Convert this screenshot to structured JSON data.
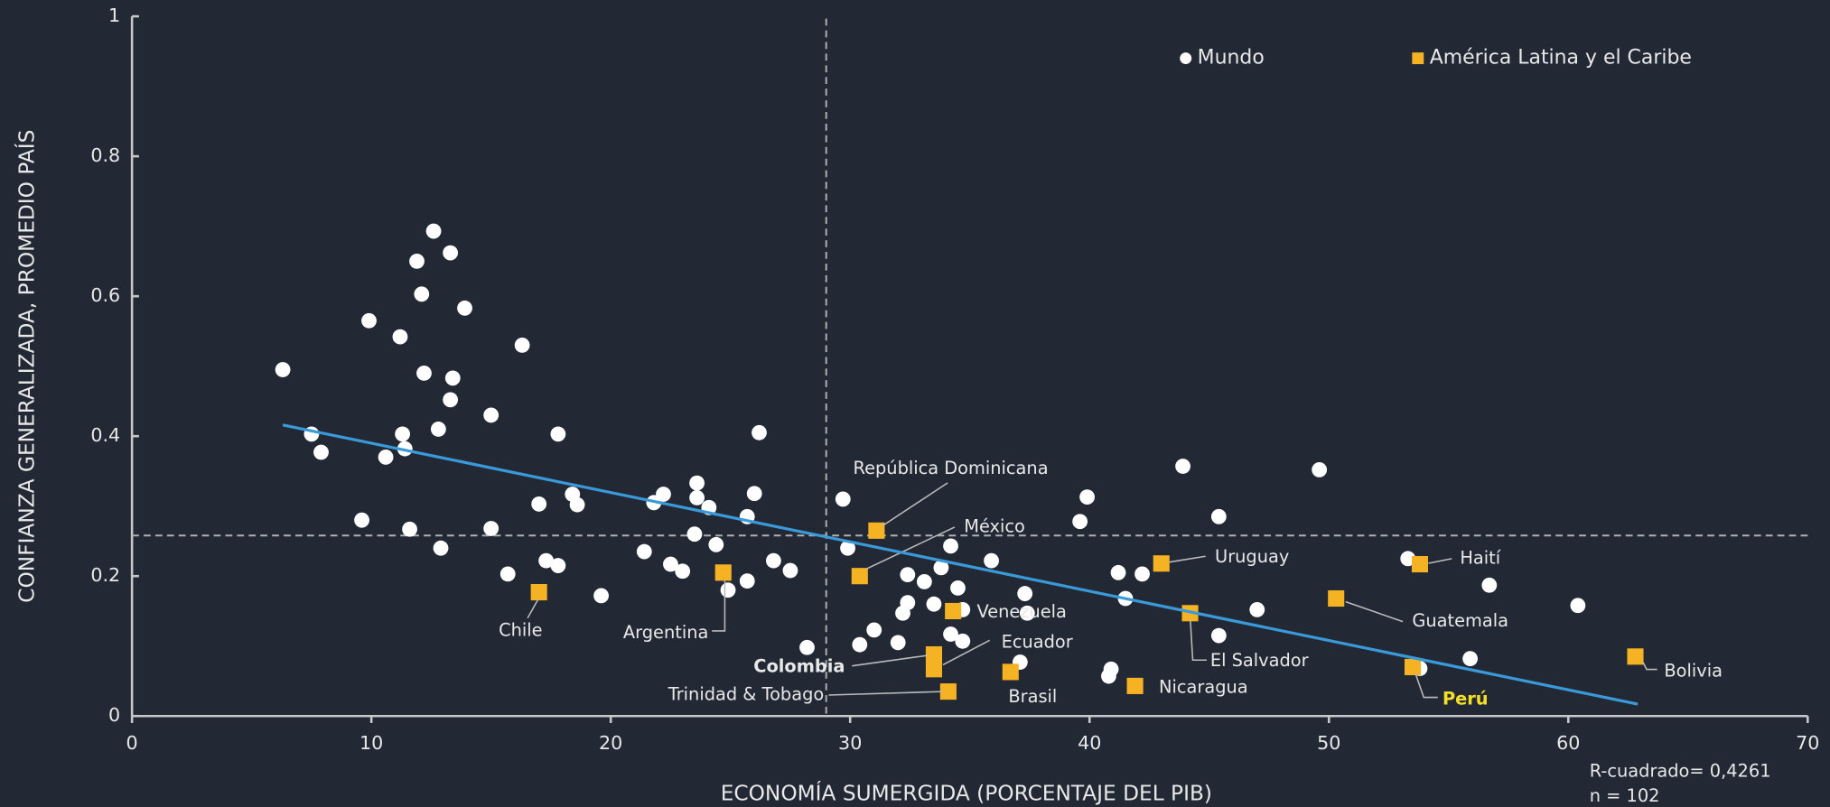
{
  "chart_data": {
    "type": "scatter",
    "xlabel": "ECONOMÍA SUMERGIDA (PORCENTAJE DEL PIB)",
    "ylabel": "CONFIANZA GENERALIZADA, PROMEDIO PAÍS",
    "annotations": [
      "R-cuadrado= 0,4261",
      "n = 102"
    ],
    "xlim": [
      0,
      70
    ],
    "xticks": [
      0,
      10,
      20,
      30,
      40,
      50,
      60,
      70
    ],
    "ylim": [
      0,
      1
    ],
    "yticks": [
      0,
      0.2,
      0.4,
      0.6,
      0.8,
      1
    ],
    "legend": "top-right",
    "reference_lines": {
      "x": 29,
      "y": 0.258
    },
    "trendline": {
      "color": "#3a9ad9",
      "x": [
        6.3,
        62.9
      ],
      "y": [
        0.416,
        0.017
      ]
    },
    "series": [
      {
        "name": "Mundo",
        "color": "#ffffff",
        "marker": "circle",
        "x": [
          6.3,
          7.5,
          7.9,
          9.9,
          9.6,
          10.6,
          11.2,
          11.3,
          11.4,
          11.6,
          11.9,
          12.1,
          12.2,
          12.6,
          12.8,
          12.9,
          13.3,
          13.4,
          13.3,
          13.9,
          15.0,
          15.0,
          15.7,
          16.3,
          17.0,
          17.3,
          17.8,
          17.8,
          18.4,
          18.6,
          19.6,
          21.4,
          21.8,
          22.2,
          22.5,
          23.0,
          23.5,
          23.6,
          23.6,
          24.1,
          24.4,
          24.9,
          25.7,
          25.7,
          26.0,
          26.2,
          26.8,
          27.5,
          28.2,
          29.7,
          29.9,
          30.4,
          31.0,
          32.0,
          32.2,
          32.4,
          32.4,
          33.1,
          33.5,
          33.8,
          34.2,
          34.2,
          34.5,
          34.7,
          34.7,
          35.9,
          37.1,
          37.3,
          37.4,
          39.6,
          39.9,
          40.8,
          40.9,
          41.2,
          41.5,
          42.2,
          43.9,
          45.4,
          45.4,
          47.0,
          49.6,
          53.3,
          53.8,
          55.9,
          56.7,
          60.4
        ],
        "values": [
          0.495,
          0.403,
          0.377,
          0.565,
          0.28,
          0.37,
          0.542,
          0.403,
          0.382,
          0.267,
          0.65,
          0.603,
          0.49,
          0.693,
          0.41,
          0.24,
          0.662,
          0.483,
          0.452,
          0.583,
          0.43,
          0.268,
          0.203,
          0.53,
          0.303,
          0.222,
          0.403,
          0.215,
          0.317,
          0.302,
          0.172,
          0.235,
          0.305,
          0.317,
          0.217,
          0.207,
          0.26,
          0.333,
          0.312,
          0.298,
          0.245,
          0.18,
          0.193,
          0.285,
          0.318,
          0.405,
          0.222,
          0.208,
          0.098,
          0.31,
          0.24,
          0.102,
          0.123,
          0.105,
          0.147,
          0.162,
          0.202,
          0.192,
          0.16,
          0.212,
          0.243,
          0.117,
          0.183,
          0.152,
          0.107,
          0.222,
          0.077,
          0.175,
          0.147,
          0.278,
          0.313,
          0.057,
          0.067,
          0.205,
          0.168,
          0.203,
          0.357,
          0.285,
          0.115,
          0.152,
          0.352,
          0.225,
          0.068,
          0.082,
          0.187,
          0.158
        ]
      },
      {
        "name": "América Latina y el Caribe",
        "color": "#f5b323",
        "marker": "square",
        "labels": [
          "Chile",
          "Argentina",
          "República Dominicana",
          "México",
          "Venezuela",
          "Colombia",
          "Ecuador",
          "Trinidad & Tobago",
          "Brasil",
          "Nicaragua",
          "Uruguay",
          "El Salvador",
          "Guatemala",
          "Haití",
          "Perú",
          "Bolivia"
        ],
        "x": [
          17.0,
          24.7,
          31.1,
          30.4,
          34.3,
          33.5,
          33.5,
          34.1,
          36.7,
          41.9,
          43.0,
          44.2,
          50.3,
          53.8,
          53.5,
          62.8
        ],
        "values": [
          0.177,
          0.205,
          0.265,
          0.2,
          0.15,
          0.088,
          0.067,
          0.035,
          0.063,
          0.043,
          0.218,
          0.147,
          0.168,
          0.217,
          0.07,
          0.085
        ]
      }
    ]
  }
}
